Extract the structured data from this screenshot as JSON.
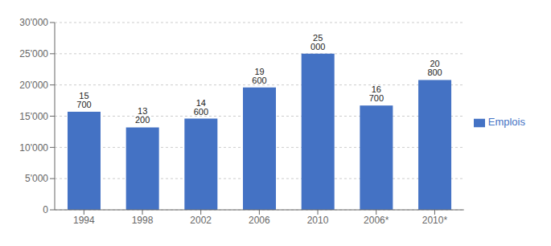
{
  "chart_data": {
    "type": "bar",
    "categories": [
      "1994",
      "1998",
      "2002",
      "2006",
      "2010",
      "2006*",
      "2010*"
    ],
    "series": [
      {
        "name": "Emplois",
        "color": "#4472C4",
        "values": [
          15700,
          13200,
          14600,
          19600,
          25000,
          16700,
          20800
        ],
        "value_labels": [
          "15 700",
          "13 200",
          "14 600",
          "19 600",
          "25 000",
          "16 700",
          "20 800"
        ]
      }
    ],
    "ylim": [
      0,
      30000
    ],
    "yticks": [
      0,
      {
        "value": 5000,
        "label": "5'000"
      },
      {
        "value": 10000,
        "label": "10'000"
      },
      {
        "value": 15000,
        "label": "15'000"
      },
      {
        "value": 20000,
        "label": "20'000"
      },
      {
        "value": 25000,
        "label": "25'000"
      },
      {
        "value": 30000,
        "label": "30'000"
      }
    ],
    "grid": true,
    "legend": "right",
    "data_labels": true
  }
}
